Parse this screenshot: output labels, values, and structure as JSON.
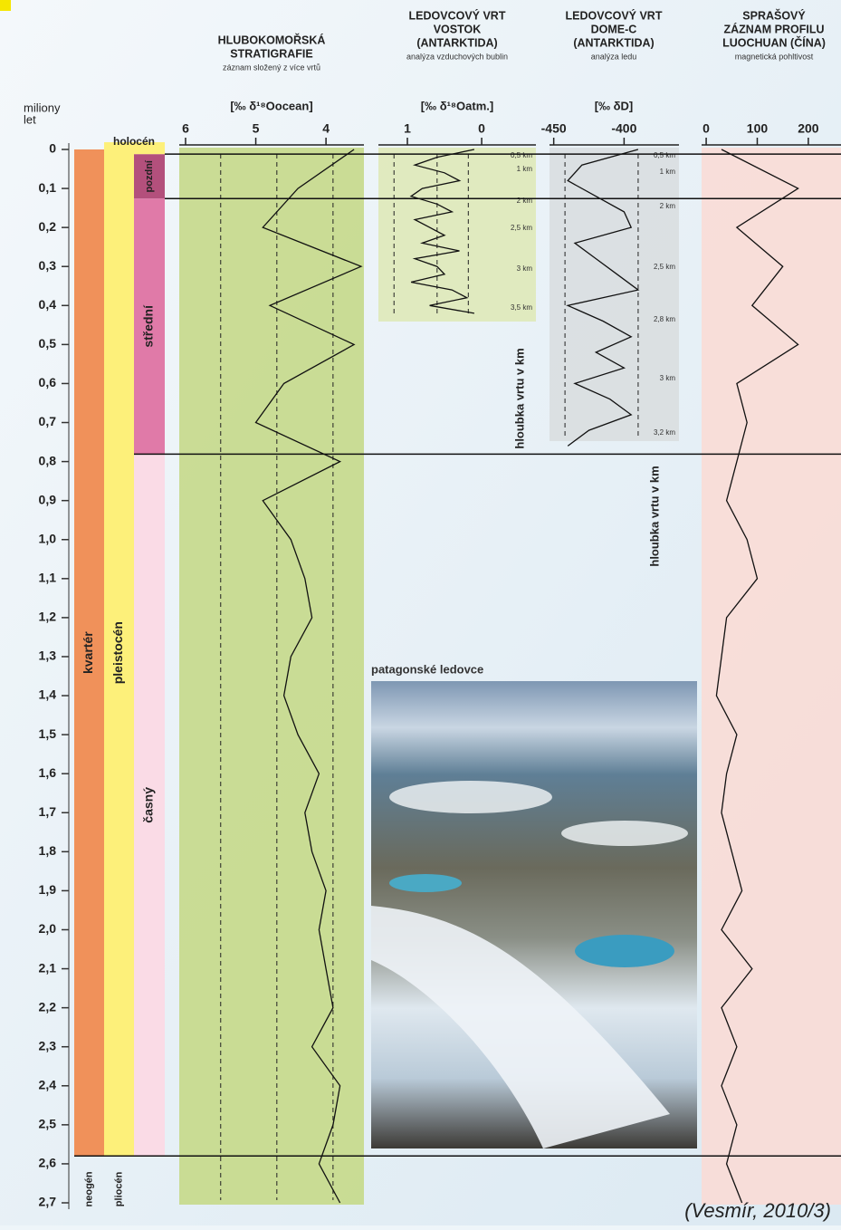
{
  "age_axis": {
    "label": [
      "miliony",
      "let"
    ],
    "lim": [
      0,
      2.7
    ],
    "ticks": [
      0,
      {
        "value": 0.1,
        "label": "0,1"
      },
      {
        "value": 0.2,
        "label": "0,2"
      },
      {
        "value": 0.3,
        "label": "0,3"
      },
      {
        "value": 0.4,
        "label": "0,4"
      },
      {
        "value": 0.5,
        "label": "0,5"
      },
      {
        "value": 0.6,
        "label": "0,6"
      },
      {
        "value": 0.7,
        "label": "0,7"
      },
      {
        "value": 0.8,
        "label": "0,8"
      },
      {
        "value": 0.9,
        "label": "0,9"
      },
      {
        "value": 1,
        "label": "1,0"
      },
      {
        "value": 1.1,
        "label": "1,1"
      },
      {
        "value": 1.2,
        "label": "1,2"
      },
      {
        "value": 1.3,
        "label": "1,3"
      },
      {
        "value": 1.4,
        "label": "1,4"
      },
      {
        "value": 1.5,
        "label": "1,5"
      },
      {
        "value": 1.6,
        "label": "1,6"
      },
      {
        "value": 1.7,
        "label": "1,7"
      },
      {
        "value": 1.8,
        "label": "1,8"
      },
      {
        "value": 1.9,
        "label": "1,9"
      },
      {
        "value": 2,
        "label": "2,0"
      },
      {
        "value": 2.1,
        "label": "2,1"
      },
      {
        "value": 2.2,
        "label": "2,2"
      },
      {
        "value": 2.3,
        "label": "2,3"
      },
      {
        "value": 2.4,
        "label": "2,4"
      },
      {
        "value": 2.5,
        "label": "2,5"
      },
      {
        "value": 2.6,
        "label": "2,6"
      },
      {
        "value": 2.7,
        "label": "2,7"
      }
    ]
  },
  "units": [
    {
      "label": "kvartér",
      "column": 0,
      "from": 0,
      "to": 2.58,
      "color": "#f0915a"
    },
    {
      "label": "neogén",
      "column": 0,
      "from": 2.58,
      "to": 2.75,
      "color": "none"
    },
    {
      "label": "pleistocén",
      "column": 1,
      "from": 0,
      "to": 2.58,
      "color": "#fdf07a"
    },
    {
      "label": "pliocén",
      "column": 1,
      "from": 2.58,
      "to": 2.75,
      "color": "none"
    },
    {
      "label": "pozdní",
      "column": 2,
      "from": 0.012,
      "to": 0.126,
      "color": "#b3507c"
    },
    {
      "label": "střední",
      "column": 2,
      "from": 0.126,
      "to": 0.781,
      "color": "#e07aa8"
    },
    {
      "label": "časný",
      "column": 2,
      "from": 0.781,
      "to": 2.58,
      "color": "#fadbe6"
    }
  ],
  "holocene": {
    "label": "holocén",
    "to": 0.012
  },
  "boundaries": [
    0.012,
    0.126,
    0.781,
    2.58
  ],
  "chart_data": [
    {
      "type": "line",
      "title": [
        "HLUBOKOMOŘSKÁ",
        "STRATIGRAFIE"
      ],
      "subtitle": "záznam složený z více vrtů",
      "ylabel": "[‰ δ¹⁸Oocean]",
      "ylim": [
        6.09,
        3.46
      ],
      "yticks": [
        6,
        5,
        4
      ],
      "reference_lines": [
        5.5,
        4.7,
        3.9
      ],
      "panel_color": "#c5d98a",
      "x": [
        0,
        0.1,
        0.2,
        0.3,
        0.4,
        0.5,
        0.6,
        0.7,
        0.8,
        0.9,
        1,
        1.1,
        1.2,
        1.3,
        1.4,
        1.5,
        1.6,
        1.7,
        1.8,
        1.9,
        2,
        2.1,
        2.2,
        2.3,
        2.4,
        2.5,
        2.6,
        2.7
      ],
      "values": [
        3.6,
        4.4,
        4.9,
        3.5,
        4.8,
        3.6,
        4.6,
        5.0,
        3.8,
        4.9,
        4.5,
        4.3,
        4.2,
        4.5,
        4.6,
        4.4,
        4.1,
        4.3,
        4.2,
        4.0,
        4.1,
        4.0,
        3.9,
        4.2,
        3.8,
        3.9,
        4.1,
        3.8
      ]
    },
    {
      "type": "line",
      "title": [
        "LEDOVCOVÝ VRT",
        "VOSTOK",
        "(ANTARKTIDA)"
      ],
      "subtitle": "analýza vzduchových bublin",
      "ylabel": "[‰ δ¹⁸Oatm.]",
      "ylim": [
        1.39,
        -0.73
      ],
      "yticks": [
        1,
        0
      ],
      "reference_lines": [
        1.18,
        0.6,
        0.18
      ],
      "panel_color": "#dfe9b8",
      "depth_label": "hloubka vrtu v km",
      "depths": [
        "0,5 km",
        "1 km",
        "2 km",
        "2,5 km",
        "3 km",
        "3,5 km"
      ],
      "x": [
        0,
        0.02,
        0.04,
        0.06,
        0.08,
        0.1,
        0.12,
        0.14,
        0.16,
        0.18,
        0.2,
        0.22,
        0.24,
        0.26,
        0.28,
        0.3,
        0.32,
        0.34,
        0.36,
        0.38,
        0.4,
        0.42
      ],
      "values": [
        0.1,
        0.6,
        0.9,
        0.5,
        0.3,
        0.8,
        0.95,
        0.6,
        0.4,
        0.9,
        0.7,
        0.5,
        0.8,
        0.3,
        0.9,
        0.6,
        0.5,
        0.95,
        0.4,
        0.2,
        0.7,
        0.1
      ]
    },
    {
      "type": "line",
      "title": [
        "LEDOVCOVÝ VRT",
        "DOME-C",
        "(ANTARKTIDA)"
      ],
      "subtitle": "analýza ledu",
      "ylabel": "[‰ δD]",
      "ylim": [
        -453,
        -361
      ],
      "yticks": [
        -450,
        -400
      ],
      "reference_lines": [
        -442,
        -390
      ],
      "panel_color": "#d9dee0",
      "depth_label": "hloubka vrtu v km",
      "depths": [
        "0,5 km",
        "1 km",
        "2 km",
        "2,5 km",
        "2,8 km",
        "3 km",
        "3,2 km"
      ],
      "x": [
        0,
        0.04,
        0.08,
        0.12,
        0.16,
        0.2,
        0.24,
        0.28,
        0.32,
        0.36,
        0.4,
        0.44,
        0.48,
        0.52,
        0.56,
        0.6,
        0.64,
        0.68,
        0.72,
        0.76
      ],
      "values": [
        -390,
        -430,
        -440,
        -420,
        -400,
        -395,
        -435,
        -420,
        -405,
        -390,
        -440,
        -415,
        -395,
        -420,
        -400,
        -435,
        -410,
        -395,
        -425,
        -440
      ]
    },
    {
      "type": "line",
      "title": [
        "SPRAŠOVÝ",
        "ZÁZNAM PROFILU",
        "LUOCHUAN (ČÍNA)"
      ],
      "subtitle": "magnetická pohltivost",
      "ylim": [
        -9,
        264
      ],
      "yticks": [
        0,
        100,
        200
      ],
      "panel_color": "#f9dcd6",
      "x": [
        0,
        0.1,
        0.2,
        0.3,
        0.4,
        0.5,
        0.6,
        0.7,
        0.8,
        0.9,
        1,
        1.1,
        1.2,
        1.3,
        1.4,
        1.5,
        1.6,
        1.7,
        1.8,
        1.9,
        2,
        2.1,
        2.2,
        2.3,
        2.4,
        2.5,
        2.6,
        2.7
      ],
      "values": [
        30,
        180,
        60,
        150,
        90,
        180,
        60,
        80,
        60,
        40,
        80,
        100,
        40,
        30,
        20,
        60,
        40,
        30,
        50,
        70,
        30,
        90,
        30,
        60,
        30,
        60,
        40,
        70
      ]
    }
  ],
  "photo_label": "patagonské ledovce",
  "citation": "(Vesmír, 2010/3)"
}
